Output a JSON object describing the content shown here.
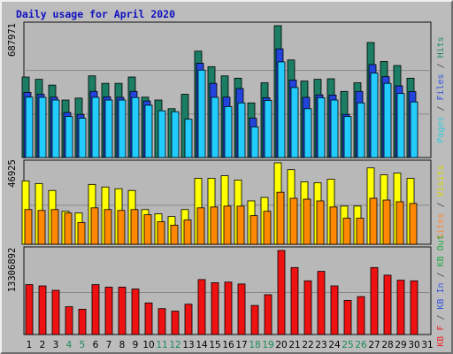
{
  "chart_data": {
    "type": "bar",
    "title": "Daily usage for April 2020",
    "categories": [
      "1",
      "2",
      "3",
      "4",
      "5",
      "6",
      "7",
      "8",
      "9",
      "10",
      "11",
      "12",
      "13",
      "14",
      "15",
      "16",
      "17",
      "18",
      "19",
      "20",
      "21",
      "22",
      "23",
      "24",
      "25",
      "26",
      "27",
      "28",
      "29",
      "30",
      "31"
    ],
    "weekend_categories": [
      "4",
      "5",
      "11",
      "12",
      "18",
      "19",
      "25",
      "26"
    ],
    "panels": [
      {
        "id": "top",
        "ymax_label": "687971",
        "ymax": 687971,
        "legend": [
          {
            "text": "Pages",
            "color": "#33ccdd"
          },
          {
            "text": " / ",
            "color": "#444444"
          },
          {
            "text": "Files",
            "color": "#3355dd"
          },
          {
            "text": " / ",
            "color": "#444444"
          },
          {
            "text": "Hits",
            "color": "#228866"
          }
        ],
        "series": [
          {
            "name": "Hits",
            "color": "#1b7d63",
            "values": [
              420000,
              408000,
              378000,
              300000,
              310000,
              426000,
              387000,
              387000,
              420000,
              315000,
              300000,
              255000,
              330000,
              555000,
              474000,
              426000,
              414000,
              285000,
              390000,
              687971,
              509000,
              399000,
              408000,
              411000,
              345000,
              390000,
              600000,
              501000,
              480000,
              414000,
              0
            ]
          },
          {
            "name": "Files",
            "color": "#2244dd",
            "values": [
              340000,
              330000,
              315000,
              235000,
              225000,
              345000,
              317000,
              314000,
              345000,
              295000,
              0,
              0,
              0,
              492000,
              387000,
              315000,
              360000,
              205000,
              312000,
              567000,
              404000,
              314000,
              327000,
              326000,
              225000,
              345000,
              485000,
              422000,
              374000,
              344000,
              0
            ]
          },
          {
            "name": "Pages",
            "color": "#22ccff",
            "values": [
              315000,
              314000,
              300000,
              214000,
              205000,
              314000,
              300000,
              300000,
              313000,
              273000,
              244000,
              239000,
              200000,
              456000,
              314000,
              266000,
              285000,
              160000,
              298000,
              499000,
              365000,
              255000,
              312000,
              300000,
              214000,
              285000,
              441000,
              387000,
              334000,
              290000,
              0
            ]
          }
        ]
      },
      {
        "id": "middle",
        "ymax_label": "46925",
        "ymax": 46925,
        "legend": [
          {
            "text": "Sites",
            "color": "#ff8833"
          },
          {
            "text": " / ",
            "color": "#444444"
          },
          {
            "text": "Visits",
            "color": "#dddd00"
          }
        ],
        "series": [
          {
            "name": "Visits",
            "color": "#ffff00",
            "values": [
              36500,
              35000,
              31000,
              19000,
              18000,
              34500,
              33000,
              32000,
              31000,
              20000,
              17500,
              16000,
              20000,
              38000,
              38000,
              39500,
              37000,
              25000,
              27000,
              46925,
              43000,
              36000,
              35500,
              37500,
              22000,
              22000,
              44000,
              40000,
              41000,
              38000,
              0
            ]
          },
          {
            "name": "Sites",
            "color": "#ff8800",
            "values": [
              20000,
              19500,
              20000,
              18000,
              12500,
              21000,
              20000,
              19500,
              20000,
              17000,
              13000,
              11000,
              14000,
              21000,
              21500,
              22000,
              22000,
              16500,
              19000,
              30000,
              26500,
              26000,
              25000,
              21500,
              15000,
              15000,
              26500,
              25500,
              24500,
              23500,
              0
            ]
          }
        ]
      },
      {
        "id": "bottom",
        "ymax_label": "13306892",
        "ymax": 13306892,
        "legend": [
          {
            "text": "KB F",
            "color": "#ee2222"
          },
          {
            "text": " / ",
            "color": "#444444"
          },
          {
            "text": "KB In",
            "color": "#3355dd"
          },
          {
            "text": " / ",
            "color": "#444444"
          },
          {
            "text": "KB Out",
            "color": "#22aa44"
          }
        ],
        "series": [
          {
            "name": "KB F",
            "color": "#ee1111",
            "values": [
              7900000,
              7700000,
              7000000,
              4400000,
              4000000,
              7900000,
              7500000,
              7500000,
              7200000,
              5000000,
              4100000,
              3700000,
              4800000,
              8700000,
              8200000,
              8300000,
              8000000,
              4600000,
              6300000,
              13306892,
              10600000,
              8500000,
              10000000,
              7700000,
              5400000,
              6000000,
              10600000,
              9400000,
              8600000,
              8500000,
              0
            ]
          }
        ]
      }
    ]
  }
}
